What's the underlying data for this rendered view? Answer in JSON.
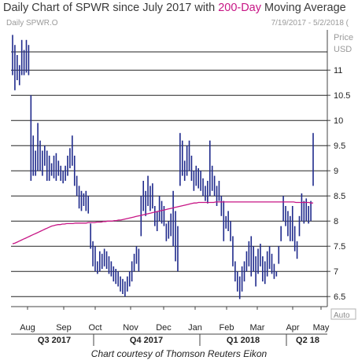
{
  "header": {
    "title_before": "Daily Chart of SPWR since July 2017 with ",
    "title_highlight": "200-Day",
    "title_after": " Moving Average",
    "symbol": "Daily SPWR.O",
    "date_range": "7/19/2017 - 5/2/2018 (",
    "price_label": "Price",
    "currency": "USD",
    "auto_label": "Auto",
    "credit": "Chart courtesy of Thomson Reuters Eikon"
  },
  "chart_data": {
    "type": "bar",
    "subtype": "hi-lo daily price bars with moving average overlay",
    "ylim": [
      6.3,
      11.8
    ],
    "y_ticks": [
      6.5,
      7,
      7.5,
      8,
      8.5,
      9,
      9.5,
      10,
      10.5,
      11
    ],
    "y_tick_labels": [
      "6.5",
      "7",
      "7.5",
      "8",
      "8.5",
      "9",
      "9.5",
      "10",
      "10.5",
      "11"
    ],
    "x_month_labels": [
      "Aug",
      "Sep",
      "Oct",
      "Nov",
      "Dec",
      "Jan",
      "Feb",
      "Mar",
      "Apr",
      "May"
    ],
    "quarters": [
      "Q3 2017",
      "Q4 2017",
      "Q1 2018",
      "Q2 18"
    ],
    "colors": {
      "price_bars": "#1f2a8c",
      "moving_average": "#c71585",
      "gridline": "#222222"
    },
    "series": [
      {
        "role": "price",
        "points": [
          {
            "hi": 11.7,
            "lo": 10.9
          },
          {
            "hi": 11.5,
            "lo": 10.6
          },
          {
            "hi": 11.3,
            "lo": 10.8
          },
          {
            "hi": 11.1,
            "lo": 10.7
          },
          {
            "hi": 11.6,
            "lo": 10.9
          },
          {
            "hi": 11.4,
            "lo": 10.9
          },
          {
            "hi": 11.6,
            "lo": 10.95
          },
          {
            "hi": 11.5,
            "lo": 10.9
          },
          {
            "hi": 10.5,
            "lo": 8.8
          },
          {
            "hi": 9.7,
            "lo": 8.9
          },
          {
            "hi": 9.4,
            "lo": 8.9
          },
          {
            "hi": 9.95,
            "lo": 9.0
          },
          {
            "hi": 9.6,
            "lo": 9.0
          },
          {
            "hi": 9.4,
            "lo": 8.9
          },
          {
            "hi": 9.5,
            "lo": 9.1
          },
          {
            "hi": 9.4,
            "lo": 8.8
          },
          {
            "hi": 9.3,
            "lo": 8.8
          },
          {
            "hi": 9.15,
            "lo": 8.9
          },
          {
            "hi": 9.3,
            "lo": 8.85
          },
          {
            "hi": 9.35,
            "lo": 8.8
          },
          {
            "hi": 9.2,
            "lo": 8.9
          },
          {
            "hi": 9.1,
            "lo": 8.8
          },
          {
            "hi": 9.0,
            "lo": 8.75
          },
          {
            "hi": 9.1,
            "lo": 8.8
          },
          {
            "hi": 9.3,
            "lo": 8.9
          },
          {
            "hi": 9.45,
            "lo": 9.05
          },
          {
            "hi": 9.7,
            "lo": 9.1
          },
          {
            "hi": 9.3,
            "lo": 8.7
          },
          {
            "hi": 8.9,
            "lo": 8.5
          },
          {
            "hi": 8.7,
            "lo": 8.25
          },
          {
            "hi": 8.6,
            "lo": 8.2
          },
          {
            "hi": 8.55,
            "lo": 8.3
          },
          {
            "hi": 8.6,
            "lo": 8.2
          },
          {
            "hi": 8.5,
            "lo": 8.15
          },
          {
            "hi": 7.95,
            "lo": 7.45
          },
          {
            "hi": 7.6,
            "lo": 7.1
          },
          {
            "hi": 7.5,
            "lo": 7.0
          },
          {
            "hi": 7.2,
            "lo": 6.95
          },
          {
            "hi": 7.4,
            "lo": 7.0
          },
          {
            "hi": 7.35,
            "lo": 7.05
          },
          {
            "hi": 7.45,
            "lo": 7.1
          },
          {
            "hi": 7.4,
            "lo": 7.05
          },
          {
            "hi": 7.3,
            "lo": 6.95
          },
          {
            "hi": 7.2,
            "lo": 6.9
          },
          {
            "hi": 7.1,
            "lo": 6.8
          },
          {
            "hi": 7.05,
            "lo": 6.75
          },
          {
            "hi": 7.0,
            "lo": 6.7
          },
          {
            "hi": 6.9,
            "lo": 6.6
          },
          {
            "hi": 6.85,
            "lo": 6.55
          },
          {
            "hi": 6.8,
            "lo": 6.5
          },
          {
            "hi": 6.9,
            "lo": 6.6
          },
          {
            "hi": 7.0,
            "lo": 6.7
          },
          {
            "hi": 7.2,
            "lo": 6.8
          },
          {
            "hi": 7.35,
            "lo": 7.0
          },
          {
            "hi": 7.5,
            "lo": 7.15
          },
          {
            "hi": 7.45,
            "lo": 7.0
          },
          {
            "hi": 8.5,
            "lo": 7.7
          },
          {
            "hi": 8.8,
            "lo": 8.2
          },
          {
            "hi": 8.6,
            "lo": 8.1
          },
          {
            "hi": 8.9,
            "lo": 8.3
          },
          {
            "hi": 8.7,
            "lo": 8.2
          },
          {
            "hi": 8.75,
            "lo": 8.25
          },
          {
            "hi": 8.3,
            "lo": 7.9
          },
          {
            "hi": 8.2,
            "lo": 7.8
          },
          {
            "hi": 8.5,
            "lo": 8.0
          },
          {
            "hi": 8.4,
            "lo": 7.95
          },
          {
            "hi": 8.3,
            "lo": 7.9
          },
          {
            "hi": 7.95,
            "lo": 7.6
          },
          {
            "hi": 8.0,
            "lo": 7.65
          },
          {
            "hi": 8.15,
            "lo": 7.7
          },
          {
            "hi": 8.6,
            "lo": 7.5
          },
          {
            "hi": 8.2,
            "lo": 7.2
          },
          {
            "hi": 7.9,
            "lo": 7.0
          },
          {
            "hi": 9.75,
            "lo": 8.7
          },
          {
            "hi": 9.6,
            "lo": 8.9
          },
          {
            "hi": 9.2,
            "lo": 8.8
          },
          {
            "hi": 9.5,
            "lo": 8.9
          },
          {
            "hi": 9.6,
            "lo": 9.0
          },
          {
            "hi": 9.3,
            "lo": 8.8
          },
          {
            "hi": 9.0,
            "lo": 8.6
          },
          {
            "hi": 9.1,
            "lo": 8.7
          },
          {
            "hi": 9.05,
            "lo": 8.65
          },
          {
            "hi": 9.0,
            "lo": 8.6
          },
          {
            "hi": 8.85,
            "lo": 8.5
          },
          {
            "hi": 8.7,
            "lo": 8.4
          },
          {
            "hi": 8.8,
            "lo": 8.35
          },
          {
            "hi": 9.6,
            "lo": 8.5
          },
          {
            "hi": 9.1,
            "lo": 8.6
          },
          {
            "hi": 8.9,
            "lo": 8.5
          },
          {
            "hi": 8.7,
            "lo": 8.3
          },
          {
            "hi": 8.8,
            "lo": 8.4
          },
          {
            "hi": 8.5,
            "lo": 8.1
          },
          {
            "hi": 8.4,
            "lo": 7.6
          },
          {
            "hi": 8.1,
            "lo": 7.85
          },
          {
            "hi": 8.2,
            "lo": 7.8
          },
          {
            "hi": 8.0,
            "lo": 7.6
          },
          {
            "hi": 7.7,
            "lo": 7.1
          },
          {
            "hi": 7.2,
            "lo": 6.8
          },
          {
            "hi": 7.0,
            "lo": 6.6
          },
          {
            "hi": 6.9,
            "lo": 6.45
          },
          {
            "hi": 7.1,
            "lo": 6.6
          },
          {
            "hi": 7.2,
            "lo": 6.8
          },
          {
            "hi": 7.4,
            "lo": 7.0
          },
          {
            "hi": 7.6,
            "lo": 7.1
          },
          {
            "hi": 7.7,
            "lo": 6.9
          },
          {
            "hi": 7.5,
            "lo": 7.0
          },
          {
            "hi": 7.3,
            "lo": 6.7
          },
          {
            "hi": 7.45,
            "lo": 6.95
          },
          {
            "hi": 7.55,
            "lo": 7.1
          },
          {
            "hi": 7.3,
            "lo": 6.8
          },
          {
            "hi": 7.2,
            "lo": 6.75
          },
          {
            "hi": 7.4,
            "lo": 6.9
          },
          {
            "hi": 7.5,
            "lo": 7.05
          },
          {
            "hi": 7.35,
            "lo": 6.95
          },
          {
            "hi": 7.15,
            "lo": 6.85
          },
          {
            "hi": 7.0,
            "lo": 6.9
          },
          {
            "hi": 7.5,
            "lo": 7.15
          },
          {
            "hi": 7.9,
            "lo": 7.6
          },
          {
            "hi": 8.5,
            "lo": 8.0
          },
          {
            "hi": 8.3,
            "lo": 7.9
          },
          {
            "hi": 8.2,
            "lo": 7.7
          },
          {
            "hi": 8.1,
            "lo": 7.6
          },
          {
            "hi": 8.3,
            "lo": 7.6
          },
          {
            "hi": 7.9,
            "lo": 7.4
          },
          {
            "hi": 7.6,
            "lo": 7.25
          },
          {
            "hi": 8.1,
            "lo": 7.7
          },
          {
            "hi": 8.55,
            "lo": 8.0
          },
          {
            "hi": 8.4,
            "lo": 7.95
          },
          {
            "hi": 8.45,
            "lo": 8.0
          },
          {
            "hi": 8.3,
            "lo": 7.95
          },
          {
            "hi": 8.4,
            "lo": 8.0
          },
          {
            "hi": 9.75,
            "lo": 8.7
          }
        ]
      },
      {
        "role": "200-day moving average",
        "values": [
          7.55,
          7.56,
          7.58,
          7.6,
          7.62,
          7.64,
          7.66,
          7.68,
          7.7,
          7.72,
          7.74,
          7.76,
          7.78,
          7.8,
          7.82,
          7.84,
          7.86,
          7.88,
          7.9,
          7.91,
          7.92,
          7.93,
          7.93,
          7.94,
          7.94,
          7.95,
          7.95,
          7.95,
          7.95,
          7.96,
          7.96,
          7.96,
          7.96,
          7.96,
          7.96,
          7.97,
          7.97,
          7.97,
          7.97,
          7.98,
          7.98,
          7.98,
          7.99,
          7.99,
          8.0,
          8.0,
          8.0,
          8.01,
          8.01,
          8.02,
          8.02,
          8.03,
          8.04,
          8.05,
          8.06,
          8.07,
          8.08,
          8.09,
          8.1,
          8.11,
          8.12,
          8.13,
          8.14,
          8.15,
          8.16,
          8.17,
          8.18,
          8.19,
          8.2,
          8.21,
          8.22,
          8.23,
          8.24,
          8.25,
          8.26,
          8.27,
          8.28,
          8.29,
          8.3,
          8.31,
          8.32,
          8.33,
          8.34,
          8.35,
          8.36,
          8.36,
          8.37,
          8.37,
          8.37,
          8.37,
          8.37,
          8.37,
          8.37,
          8.37,
          8.38,
          8.38,
          8.38,
          8.38,
          8.38,
          8.38,
          8.38,
          8.38,
          8.38,
          8.38,
          8.38,
          8.38,
          8.38,
          8.38,
          8.38,
          8.38,
          8.38,
          8.38,
          8.38,
          8.38,
          8.38,
          8.38,
          8.38,
          8.38,
          8.38,
          8.38,
          8.38,
          8.38,
          8.38,
          8.38,
          8.38,
          8.38,
          8.38,
          8.38,
          8.38,
          8.38,
          8.38,
          8.37,
          8.37,
          8.37,
          8.37,
          8.37,
          8.37,
          8.37,
          8.36,
          8.36
        ]
      }
    ]
  }
}
